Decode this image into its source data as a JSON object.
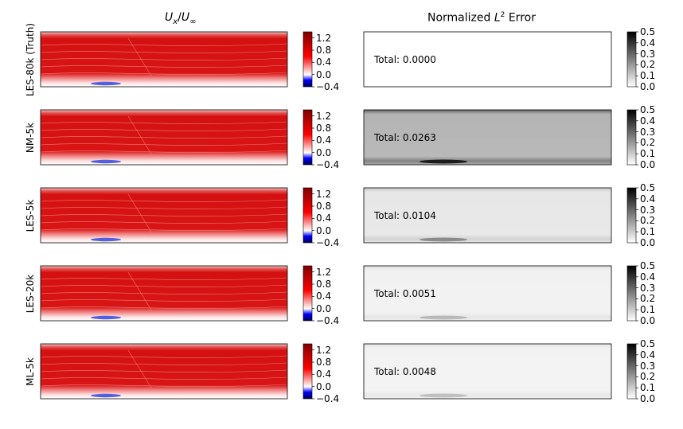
{
  "chart_data": {
    "type": "heatmap",
    "column_titles": {
      "velocity": {
        "u": "U",
        "sub_x": "x",
        "slash": "/",
        "u2": "U",
        "sub_inf": "∞"
      },
      "error": {
        "prefix": "Normalized ",
        "L": "L",
        "sup": "2",
        "suffix": " Error"
      }
    },
    "rows": [
      {
        "label": "LES-80k (Truth)",
        "total_label": "Total: 0.0000",
        "error_intensity": 0.0
      },
      {
        "label": "NM-5k",
        "total_label": "Total: 0.0263",
        "error_intensity": 0.22
      },
      {
        "label": "LES-5k",
        "total_label": "Total: 0.0104",
        "error_intensity": 0.07
      },
      {
        "label": "LES-20k",
        "total_label": "Total: 0.0051",
        "error_intensity": 0.04
      },
      {
        "label": "ML-5k",
        "total_label": "Total: 0.0048",
        "error_intensity": 0.035
      }
    ],
    "velocity_colorbar": {
      "ticks": [
        "1.2",
        "0.8",
        "0.4",
        "0.0",
        "−0.4"
      ],
      "range": [
        -0.4,
        1.4
      ],
      "colormap": "seismic"
    },
    "error_colorbar": {
      "ticks": [
        "0.5",
        "0.4",
        "0.3",
        "0.2",
        "0.1",
        "0.0"
      ],
      "range": [
        0.0,
        0.5
      ],
      "colormap": "greys"
    }
  }
}
